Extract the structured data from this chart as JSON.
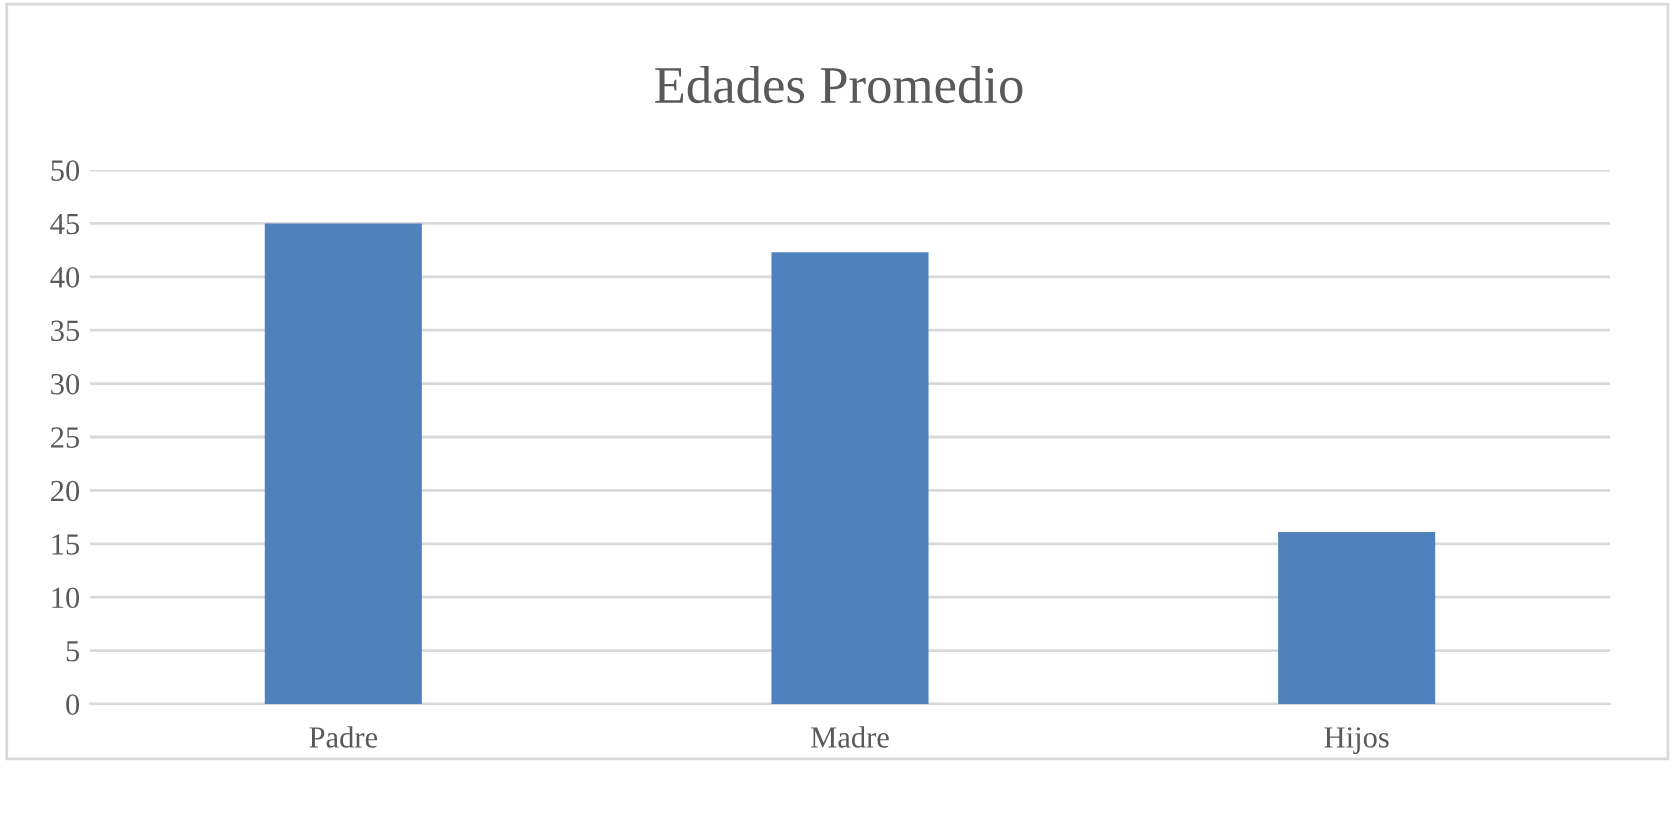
{
  "chart_data": {
    "type": "bar",
    "title": "Edades Promedio",
    "categories": [
      "Padre",
      "Madre",
      "Hijos"
    ],
    "values": [
      45,
      42.3,
      16.1
    ],
    "color": "#4f81bd",
    "ylim": [
      0,
      50
    ],
    "yticks": [
      0,
      5,
      10,
      15,
      20,
      25,
      30,
      35,
      40,
      45,
      50
    ],
    "grid": "y"
  }
}
